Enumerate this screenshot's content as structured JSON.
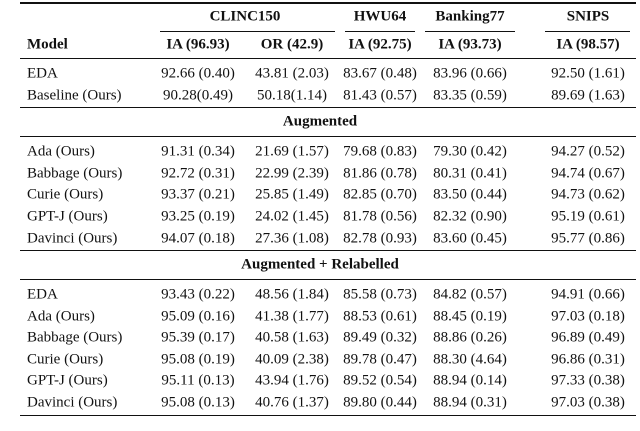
{
  "table": {
    "groups": [
      "CLINC150",
      "HWU64",
      "Banking77",
      "SNIPS"
    ],
    "columns": [
      "Model",
      "IA (96.93)",
      "OR (42.9)",
      "IA (92.75)",
      "IA (93.73)",
      "IA (98.57)"
    ],
    "sections": [
      {
        "rows": [
          [
            "EDA",
            "92.66 (0.40)",
            "43.81 (2.03)",
            "83.67 (0.48)",
            "83.96 (0.66)",
            "92.50 (1.61)"
          ],
          [
            "Baseline (Ours)",
            "90.28(0.49)",
            "50.18(1.14)",
            "81.43 (0.57)",
            "83.35 (0.59)",
            "89.69 (1.63)"
          ]
        ]
      },
      {
        "title": "Augmented",
        "rows": [
          [
            "Ada (Ours)",
            "91.31 (0.34)",
            "21.69 (1.57)",
            "79.68 (0.83)",
            "79.30 (0.42)",
            "94.27 (0.52)"
          ],
          [
            "Babbage (Ours)",
            "92.72 (0.31)",
            "22.99 (2.39)",
            "81.86 (0.78)",
            "80.31 (0.41)",
            "94.74 (0.67)"
          ],
          [
            "Curie (Ours)",
            "93.37 (0.21)",
            "25.85 (1.49)",
            "82.85 (0.70)",
            "83.50 (0.44)",
            "94.73 (0.62)"
          ],
          [
            "GPT-J (Ours)",
            "93.25 (0.19)",
            "24.02 (1.45)",
            "81.78 (0.56)",
            "82.32 (0.90)",
            "95.19 (0.61)"
          ],
          [
            "Davinci (Ours)",
            "94.07 (0.18)",
            "27.36 (1.08)",
            "82.78 (0.93)",
            "83.60 (0.45)",
            "95.77 (0.86)"
          ]
        ]
      },
      {
        "title": "Augmented + Relabelled",
        "rows": [
          [
            "EDA",
            "93.43 (0.22)",
            "48.56 (1.84)",
            "85.58 (0.73)",
            "84.82 (0.57)",
            "94.91 (0.66)"
          ],
          [
            "Ada (Ours)",
            "95.09 (0.16)",
            "41.38 (1.77)",
            "88.53 (0.61)",
            "88.45 (0.19)",
            "97.03 (0.18)"
          ],
          [
            "Babbage (Ours)",
            "95.39 (0.17)",
            "40.58 (1.63)",
            "89.49 (0.32)",
            "88.86 (0.26)",
            "96.89 (0.49)"
          ],
          [
            "Curie (Ours)",
            "95.08 (0.19)",
            "40.09 (2.38)",
            "89.78 (0.47)",
            "88.30 (4.64)",
            "96.86 (0.31)"
          ],
          [
            "GPT-J (Ours)",
            "95.11 (0.13)",
            "43.94 (1.76)",
            "89.52 (0.54)",
            "88.94 (0.14)",
            "97.33 (0.38)"
          ],
          [
            "Davinci (Ours)",
            "95.08 (0.13)",
            "40.76 (1.37)",
            "89.80 (0.44)",
            "88.94 (0.31)",
            "97.03 (0.38)"
          ]
        ]
      }
    ]
  }
}
